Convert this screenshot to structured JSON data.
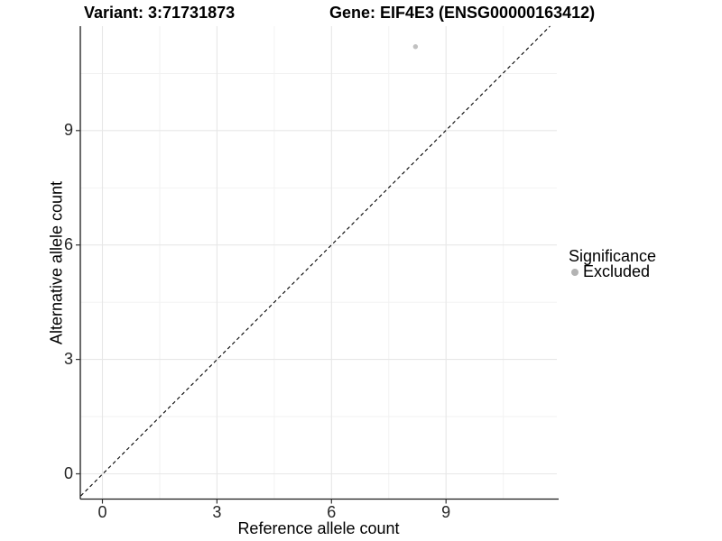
{
  "titles": {
    "variant": "Variant: 3:71731873",
    "gene": "Gene: EIF4E3 (ENSG00000163412)"
  },
  "axes": {
    "x": {
      "label": "Reference allele count",
      "ticks": [
        "0",
        "3",
        "6",
        "9"
      ]
    },
    "y": {
      "label": "Alternative allele count",
      "ticks": [
        "0",
        "3",
        "6",
        "9"
      ]
    }
  },
  "legend": {
    "title": "Significance",
    "items": [
      {
        "label": "Excluded",
        "marker": "dot-icon",
        "color": "#b3b3b3"
      }
    ]
  },
  "colors": {
    "point": "#c1c1c1",
    "legend_dot": "#b3b3b3",
    "grid_major": "#e7e7e7",
    "grid_minor": "#f1f1f1",
    "axis_line": "#1a1a1a",
    "reference_line": "#000000"
  },
  "chart_data": {
    "type": "scatter",
    "title": "Variant: 3:71731873 — Gene: EIF4E3 (ENSG00000163412)",
    "xlabel": "Reference allele count",
    "ylabel": "Alternative allele count",
    "xlim": [
      -0.65,
      11.9
    ],
    "ylim": [
      -0.66,
      11.75
    ],
    "x_ticks": [
      0,
      3,
      6,
      9
    ],
    "y_ticks": [
      0,
      3,
      6,
      9
    ],
    "x_minor_ticks": [
      1.5,
      4.5,
      7.5,
      10.5
    ],
    "y_minor_ticks": [
      1.5,
      4.5,
      7.5,
      10.5
    ],
    "grid": "major and minor, light gray on white",
    "legend_position": "right",
    "series": [
      {
        "name": "Excluded",
        "color": "#c1c1c1",
        "points": [
          {
            "x": 8.2,
            "y": 11.2
          }
        ]
      }
    ],
    "reference_line": {
      "kind": "identity y=x",
      "linetype": "dashed",
      "color": "#000000"
    }
  }
}
